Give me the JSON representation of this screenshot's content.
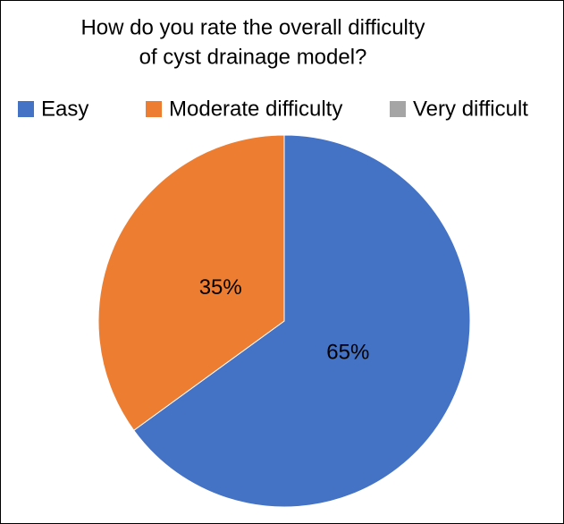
{
  "chart_data": {
    "type": "pie",
    "title": [
      "How do you rate the overall difficulty",
      "of cyst drainage model?"
    ],
    "categories": [
      "Easy",
      "Moderate difficulty",
      "Very difficult"
    ],
    "values": [
      65,
      35,
      0
    ],
    "value_labels": [
      "65%",
      "35%",
      null
    ],
    "colors": [
      "#4472c4",
      "#ed7d31",
      "#a5a5a5"
    ],
    "legend": "top"
  }
}
